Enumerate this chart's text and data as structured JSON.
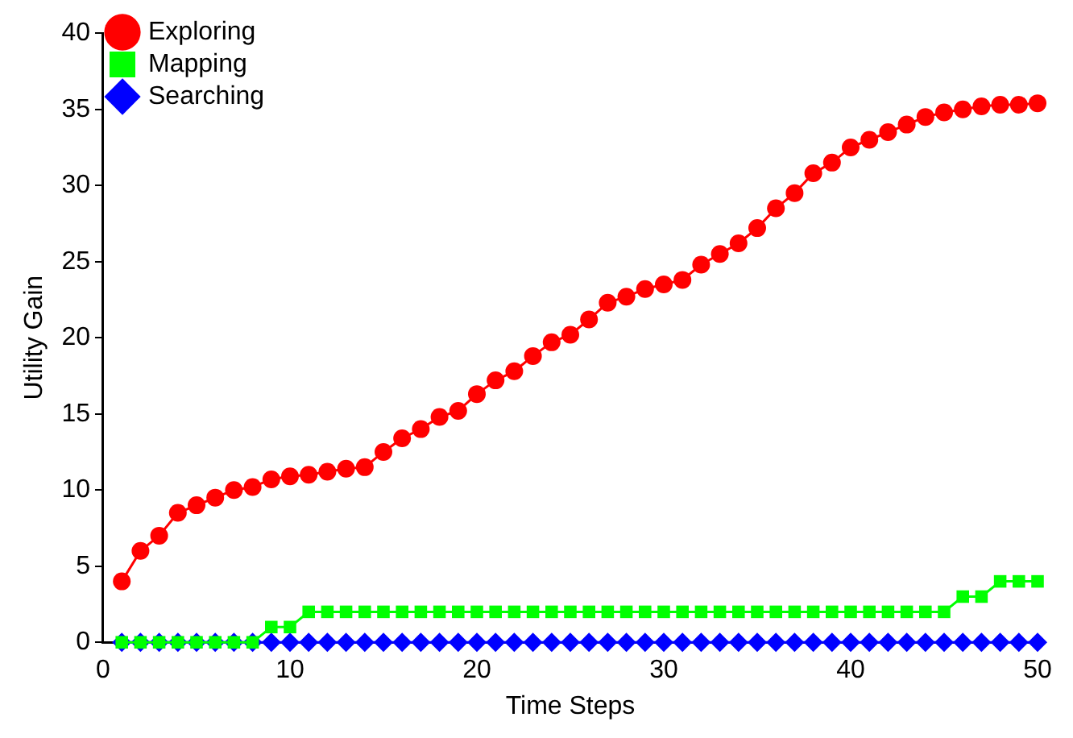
{
  "chart_data": {
    "type": "line",
    "xlabel": "Time Steps",
    "ylabel": "Utility Gain",
    "x": [
      1,
      2,
      3,
      4,
      5,
      6,
      7,
      8,
      9,
      10,
      11,
      12,
      13,
      14,
      15,
      16,
      17,
      18,
      19,
      20,
      21,
      22,
      23,
      24,
      25,
      26,
      27,
      28,
      29,
      30,
      31,
      32,
      33,
      34,
      35,
      36,
      37,
      38,
      39,
      40,
      41,
      42,
      43,
      44,
      45,
      46,
      47,
      48,
      49,
      50
    ],
    "series": [
      {
        "name": "Exploring",
        "color": "#ff0000",
        "marker": "circle",
        "values": [
          4,
          6,
          7,
          8.5,
          9,
          9.5,
          10,
          10.2,
          10.7,
          10.9,
          11,
          11.2,
          11.4,
          11.5,
          12.5,
          13.4,
          14,
          14.8,
          15.2,
          16.3,
          17.2,
          17.8,
          18.8,
          19.7,
          20.2,
          21.2,
          22.3,
          22.7,
          23.2,
          23.5,
          23.8,
          24.8,
          25.5,
          26.2,
          27.2,
          28.5,
          29.5,
          30.8,
          31.5,
          32.5,
          33,
          33.5,
          34,
          34.5,
          34.8,
          35,
          35.2,
          35.3,
          35.3,
          35.4
        ]
      },
      {
        "name": "Mapping",
        "color": "#00ff00",
        "marker": "square",
        "values": [
          0,
          0,
          0,
          0,
          0,
          0,
          0,
          0,
          1,
          1,
          2,
          2,
          2,
          2,
          2,
          2,
          2,
          2,
          2,
          2,
          2,
          2,
          2,
          2,
          2,
          2,
          2,
          2,
          2,
          2,
          2,
          2,
          2,
          2,
          2,
          2,
          2,
          2,
          2,
          2,
          2,
          2,
          2,
          2,
          2,
          3,
          3,
          4,
          4,
          4
        ]
      },
      {
        "name": "Searching",
        "color": "#0000ff",
        "marker": "diamond",
        "values": [
          0,
          0,
          0,
          0,
          0,
          0,
          0,
          0,
          0,
          0,
          0,
          0,
          0,
          0,
          0,
          0,
          0,
          0,
          0,
          0,
          0,
          0,
          0,
          0,
          0,
          0,
          0,
          0,
          0,
          0,
          0,
          0,
          0,
          0,
          0,
          0,
          0,
          0,
          0,
          0,
          0,
          0,
          0,
          0,
          0,
          0,
          0,
          0,
          0,
          0
        ]
      }
    ],
    "xlim": [
      0,
      50
    ],
    "xticks": [
      0,
      10,
      20,
      30,
      40,
      50
    ],
    "ylim": [
      0,
      40
    ],
    "yticks": [
      0,
      5,
      10,
      15,
      20,
      25,
      30,
      35,
      40
    ],
    "grid": false,
    "legend": "top left"
  }
}
